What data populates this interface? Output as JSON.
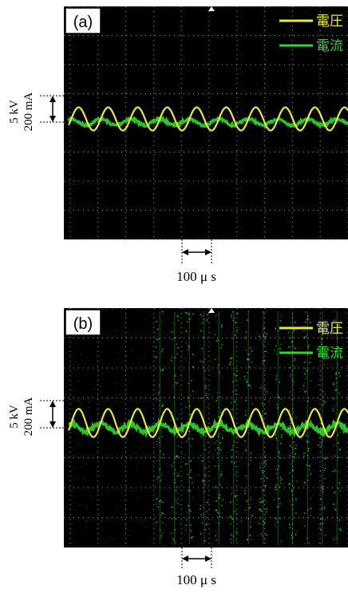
{
  "colors": {
    "voltage": "#e9e93a",
    "current": "#32d632",
    "screen": "#000000",
    "grid": "#a0a0a0"
  },
  "chart_data": [
    {
      "type": "line",
      "panel_label": "(a)",
      "legend": [
        "電圧",
        "電流"
      ],
      "legend_placement": "top-right",
      "scale_vertical": [
        "5 kV",
        "200 mA"
      ],
      "scale_horizontal": "100 μ s",
      "grid": true,
      "series": [
        {
          "name": "電圧",
          "shape": "sine",
          "period_us": 100,
          "amplitude_kV": 2.2,
          "phase_deg": 180
        },
        {
          "name": "電流",
          "shape": "sine",
          "period_us": 100,
          "amplitude_mA": 24,
          "phase_deg": 0,
          "noise": "low"
        }
      ]
    },
    {
      "type": "line",
      "panel_label": "(b)",
      "legend": [
        "電圧",
        "電流"
      ],
      "legend_placement": "top-right",
      "scale_vertical": [
        "5 kV",
        "200 mA"
      ],
      "scale_horizontal": "100 μ s",
      "grid": true,
      "series": [
        {
          "name": "電圧",
          "shape": "sine",
          "period_us": 100,
          "amplitude_kV": 2.6,
          "phase_deg": 180
        },
        {
          "name": "電流",
          "shape": "sine + discharge pulses",
          "period_us": 100,
          "amplitude_mA": 28,
          "phase_deg": 0,
          "noise": "high",
          "pulses_per_period": 2
        }
      ]
    }
  ]
}
